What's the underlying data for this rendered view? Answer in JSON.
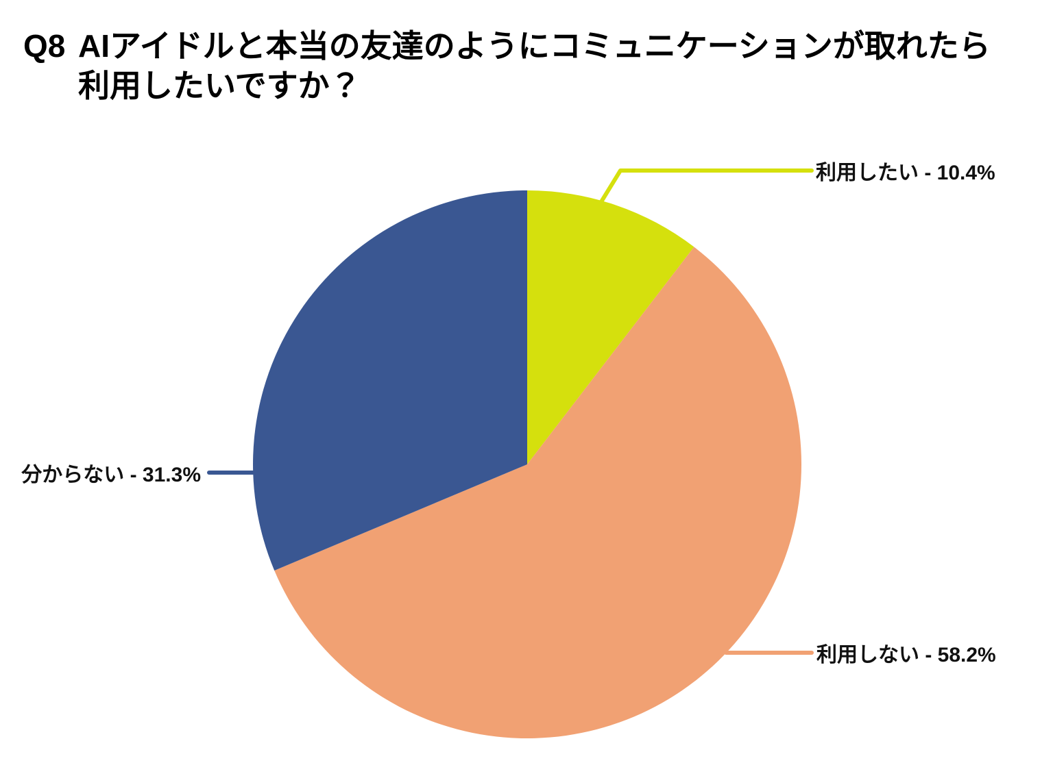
{
  "header": {
    "question_no": "Q8",
    "line1": "AIアイドルと本当の友達のようにコミュニケーションが取れたら",
    "line2": "利用したいですか？"
  },
  "chart_data": {
    "type": "pie",
    "title": "Q8 AIアイドルと本当の友達のようにコミュニケーションが取れたら利用したいですか？",
    "categories": [
      "利用したい",
      "利用しない",
      "分からない"
    ],
    "values": [
      10.4,
      58.2,
      31.3
    ],
    "unit": "%",
    "colors": [
      "#d5e00d",
      "#f1a173",
      "#3a5792"
    ],
    "start_angle": "12-oclock",
    "direction": "clockwise",
    "legend_position": "none",
    "label_style": "callout-leader-lines",
    "background": "#ffffff",
    "labels": [
      {
        "slice": "want-to-use",
        "category": "利用したい",
        "value": 10.4,
        "display": "利用したい - 10.4%"
      },
      {
        "slice": "wont-use",
        "category": "利用しない",
        "value": 58.2,
        "display": "利用しない - 58.2%"
      },
      {
        "slice": "dont-know",
        "category": "分からない",
        "value": 31.3,
        "display": "分からない - 31.3%"
      }
    ]
  }
}
